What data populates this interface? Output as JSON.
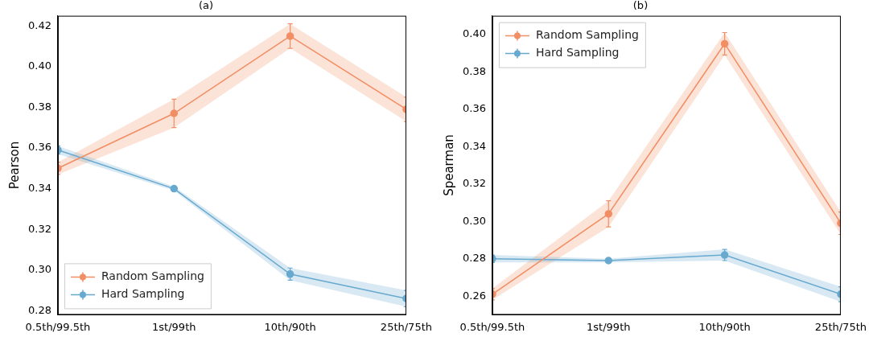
{
  "chart_data": [
    {
      "type": "line",
      "title": "(a)",
      "y_label": "Pearson",
      "categories": [
        "0.5th/99.5th",
        "1st/99th",
        "10th/90th",
        "25th/75th"
      ],
      "series": [
        {
          "name": "Random Sampling",
          "color": "#f28e64",
          "marker": "circle",
          "values": [
            0.35,
            0.377,
            0.415,
            0.379
          ],
          "errors": [
            0.003,
            0.007,
            0.006,
            0.006
          ]
        },
        {
          "name": "Hard Sampling",
          "color": "#67a9cf",
          "marker": "circle",
          "values": [
            0.359,
            0.34,
            0.298,
            0.286
          ],
          "errors": [
            0.002,
            0.001,
            0.003,
            0.004
          ]
        }
      ],
      "ylim": [
        0.278,
        0.425
      ],
      "yticks": [
        0.28,
        {
          "value": 0.3,
          "label": "0.30"
        },
        0.32,
        0.34,
        0.36,
        0.38,
        {
          "value": 0.4,
          "label": "0.40"
        },
        0.42
      ],
      "grid": false,
      "legend": "lower left"
    },
    {
      "type": "line",
      "title": "(b)",
      "y_label": "Spearman",
      "categories": [
        "0.5th/99.5th",
        "1st/99th",
        "10th/90th",
        "25th/75th"
      ],
      "series": [
        {
          "name": "Random Sampling",
          "color": "#f28e64",
          "marker": "circle",
          "values": [
            0.261,
            0.304,
            0.395,
            0.299
          ],
          "errors": [
            0.003,
            0.007,
            0.006,
            0.006
          ]
        },
        {
          "name": "Hard Sampling",
          "color": "#67a9cf",
          "marker": "circle",
          "values": [
            0.28,
            0.279,
            0.282,
            0.261
          ],
          "errors": [
            0.002,
            0.001,
            0.003,
            0.004
          ]
        }
      ],
      "ylim": [
        0.25,
        0.41
      ],
      "yticks": [
        0.26,
        0.28,
        {
          "value": 0.3,
          "label": "0.30"
        },
        0.32,
        0.34,
        0.36,
        0.38,
        {
          "value": 0.4,
          "label": "0.40"
        }
      ],
      "grid": false,
      "legend": "upper left"
    }
  ]
}
